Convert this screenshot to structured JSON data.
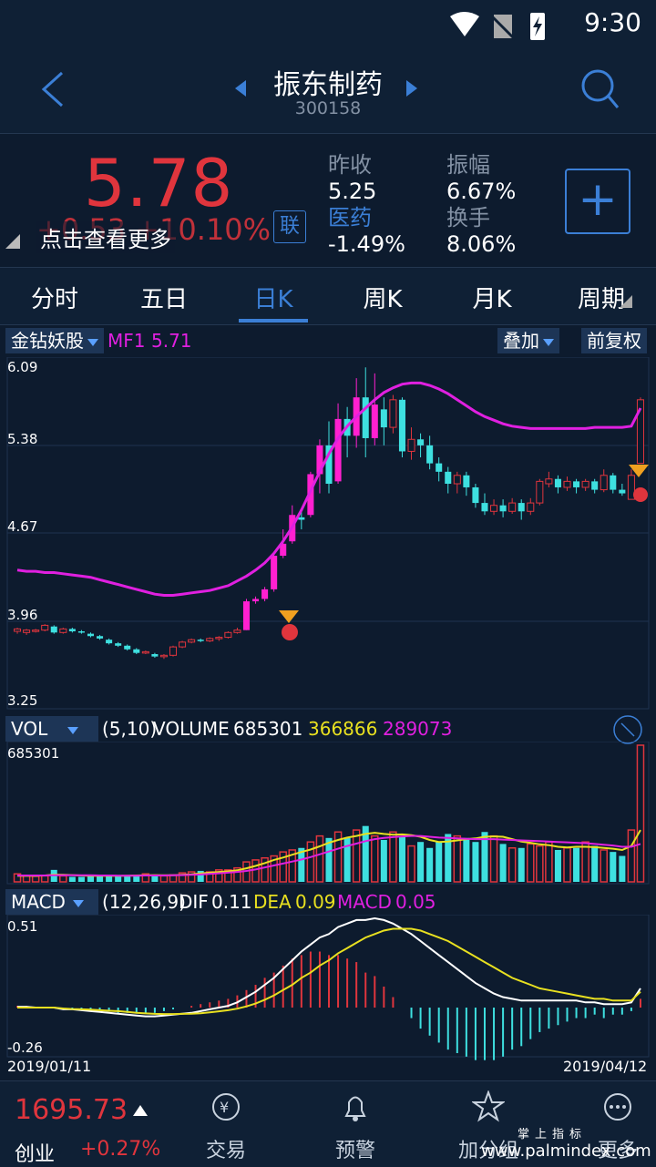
{
  "status": {
    "time": "9:30"
  },
  "header": {
    "title": "振东制药",
    "code": "300158"
  },
  "quote": {
    "price": "5.78",
    "change": "+0.53  +10.10%",
    "tap_more": "点击查看更多",
    "lian": "联",
    "prev_close_label": "昨收",
    "prev_close": "5.25",
    "sector_label": "医药",
    "sector_change": "-1.49%",
    "amplitude_label": "振幅",
    "amplitude": "6.67%",
    "turnover_label": "换手",
    "turnover": "8.06%",
    "add_label": "+"
  },
  "tabs": [
    "分时",
    "五日",
    "日K",
    "周K",
    "月K",
    "周期"
  ],
  "active_tab": 2,
  "indicator_bar": {
    "selector": "金钻妖股",
    "mf_label": "MF1",
    "mf_value": "5.71",
    "overlay": "叠加",
    "adjust": "前复权"
  },
  "price_axis": [
    "6.09",
    "5.38",
    "4.67",
    "3.96",
    "3.25"
  ],
  "vol_bar": {
    "selector": "VOL",
    "params": "(5,10)",
    "volume_label": "VOLUME",
    "volume": "685301",
    "ma5": "366866",
    "ma10": "289073",
    "max_label": "685301"
  },
  "macd_bar": {
    "selector": "MACD",
    "params": "(12,26,9)",
    "dif_label": "DIF",
    "dif": "0.11",
    "dea_label": "DEA",
    "dea": "0.09",
    "macd_label": "MACD",
    "macd": "0.05",
    "top": "0.51",
    "bottom": "-0.26"
  },
  "dates": {
    "start": "2019/01/11",
    "end": "2019/04/12"
  },
  "bottom": {
    "index_value": "1695.73",
    "index_name": "创业",
    "index_change": "+0.27%",
    "nav": [
      "交易",
      "预警",
      "加分组",
      "更多"
    ]
  },
  "watermark": {
    "line1": "掌上指标",
    "line2": "www.palmindex.com"
  },
  "colors": {
    "up": "#e0353d",
    "down": "#3ee0e0",
    "accent": "#3b7fd6",
    "mf": "#e020e0",
    "ma5": "#e8e020",
    "ma10": "#e020e0"
  },
  "chart_data": {
    "type": "candlestick",
    "price_range": [
      3.25,
      6.09
    ],
    "candles": [
      [
        3.85,
        3.87,
        3.83,
        3.88
      ],
      [
        3.84,
        3.86,
        3.82,
        3.87
      ],
      [
        3.85,
        3.86,
        3.84,
        3.87
      ],
      [
        3.86,
        3.9,
        3.85,
        3.91
      ],
      [
        3.89,
        3.84,
        3.83,
        3.9
      ],
      [
        3.84,
        3.87,
        3.83,
        3.88
      ],
      [
        3.87,
        3.85,
        3.84,
        3.88
      ],
      [
        3.85,
        3.84,
        3.83,
        3.86
      ],
      [
        3.83,
        3.81,
        3.8,
        3.84
      ],
      [
        3.81,
        3.79,
        3.78,
        3.82
      ],
      [
        3.78,
        3.75,
        3.74,
        3.79
      ],
      [
        3.75,
        3.73,
        3.72,
        3.76
      ],
      [
        3.73,
        3.7,
        3.69,
        3.74
      ],
      [
        3.7,
        3.67,
        3.66,
        3.71
      ],
      [
        3.67,
        3.68,
        3.66,
        3.69
      ],
      [
        3.66,
        3.64,
        3.63,
        3.67
      ],
      [
        3.64,
        3.65,
        3.62,
        3.66
      ],
      [
        3.65,
        3.72,
        3.64,
        3.73
      ],
      [
        3.72,
        3.76,
        3.71,
        3.77
      ],
      [
        3.76,
        3.78,
        3.75,
        3.79
      ],
      [
        3.78,
        3.77,
        3.76,
        3.79
      ],
      [
        3.77,
        3.79,
        3.76,
        3.8
      ],
      [
        3.79,
        3.8,
        3.77,
        3.81
      ],
      [
        3.8,
        3.84,
        3.79,
        3.85
      ],
      [
        3.84,
        3.86,
        3.83,
        3.88
      ],
      [
        3.86,
        4.1,
        3.86,
        4.12
      ],
      [
        4.1,
        4.12,
        4.08,
        4.14
      ],
      [
        4.12,
        4.2,
        4.1,
        4.22
      ],
      [
        4.2,
        4.48,
        4.18,
        4.5
      ],
      [
        4.48,
        4.58,
        4.46,
        4.7
      ],
      [
        4.6,
        4.82,
        4.58,
        4.9
      ],
      [
        4.8,
        4.78,
        4.7,
        4.85
      ],
      [
        4.82,
        5.16,
        4.8,
        5.18
      ],
      [
        5.16,
        5.4,
        5.0,
        5.45
      ],
      [
        5.4,
        5.08,
        5.0,
        5.6
      ],
      [
        5.1,
        5.62,
        5.08,
        5.75
      ],
      [
        5.62,
        5.48,
        5.3,
        5.72
      ],
      [
        5.48,
        5.8,
        5.38,
        5.96
      ],
      [
        5.8,
        5.46,
        5.3,
        6.05
      ],
      [
        5.46,
        5.74,
        5.4,
        6.0
      ],
      [
        5.7,
        5.55,
        5.4,
        5.8
      ],
      [
        5.55,
        5.78,
        5.5,
        5.82
      ],
      [
        5.78,
        5.35,
        5.3,
        5.8
      ],
      [
        5.35,
        5.45,
        5.28,
        5.55
      ],
      [
        5.45,
        5.4,
        5.3,
        5.5
      ],
      [
        5.4,
        5.25,
        5.2,
        5.48
      ],
      [
        5.25,
        5.18,
        5.1,
        5.3
      ],
      [
        5.18,
        5.08,
        5.0,
        5.22
      ],
      [
        5.08,
        5.15,
        5.0,
        5.18
      ],
      [
        5.15,
        5.05,
        4.98,
        5.18
      ],
      [
        5.05,
        4.92,
        4.88,
        5.08
      ],
      [
        4.92,
        4.85,
        4.82,
        5.0
      ],
      [
        4.85,
        4.9,
        4.82,
        4.95
      ],
      [
        4.9,
        4.85,
        4.8,
        4.95
      ],
      [
        4.85,
        4.92,
        4.83,
        4.96
      ],
      [
        4.92,
        4.85,
        4.78,
        4.95
      ],
      [
        4.85,
        4.92,
        4.82,
        4.96
      ],
      [
        4.92,
        5.1,
        4.9,
        5.12
      ],
      [
        5.08,
        5.12,
        5.05,
        5.18
      ],
      [
        5.12,
        5.05,
        5.0,
        5.15
      ],
      [
        5.05,
        5.1,
        5.02,
        5.14
      ],
      [
        5.1,
        5.05,
        5.0,
        5.12
      ],
      [
        5.05,
        5.1,
        5.02,
        5.12
      ],
      [
        5.1,
        5.03,
        5.0,
        5.12
      ],
      [
        5.03,
        5.15,
        5.01,
        5.2
      ],
      [
        5.15,
        5.03,
        5.0,
        5.17
      ],
      [
        5.03,
        5.0,
        4.98,
        5.08
      ],
      [
        4.95,
        5.15,
        4.95,
        5.2
      ],
      [
        5.25,
        5.78,
        5.25,
        5.8
      ]
    ],
    "mf1": [
      4.36,
      4.35,
      4.35,
      4.34,
      4.34,
      4.33,
      4.32,
      4.31,
      4.3,
      4.28,
      4.26,
      4.24,
      4.22,
      4.2,
      4.18,
      4.16,
      4.15,
      4.15,
      4.16,
      4.17,
      4.18,
      4.19,
      4.21,
      4.23,
      4.27,
      4.31,
      4.36,
      4.42,
      4.5,
      4.6,
      4.72,
      4.86,
      5.02,
      5.18,
      5.33,
      5.46,
      5.56,
      5.64,
      5.71,
      5.78,
      5.84,
      5.88,
      5.91,
      5.92,
      5.92,
      5.9,
      5.87,
      5.83,
      5.78,
      5.73,
      5.68,
      5.64,
      5.61,
      5.58,
      5.56,
      5.55,
      5.54,
      5.54,
      5.54,
      5.54,
      5.54,
      5.54,
      5.54,
      5.55,
      5.55,
      5.55,
      5.55,
      5.56,
      5.71
    ],
    "volume": [
      40,
      30,
      28,
      30,
      60,
      30,
      25,
      25,
      30,
      35,
      30,
      30,
      30,
      35,
      40,
      30,
      30,
      35,
      45,
      50,
      55,
      50,
      60,
      60,
      70,
      100,
      110,
      120,
      130,
      150,
      160,
      170,
      200,
      230,
      220,
      250,
      220,
      260,
      280,
      230,
      210,
      250,
      230,
      180,
      200,
      170,
      200,
      240,
      230,
      220,
      200,
      250,
      230,
      190,
      170,
      170,
      190,
      180,
      200,
      160,
      170,
      170,
      200,
      180,
      160,
      150,
      130,
      260,
      685
    ],
    "ma5": [
      30,
      30,
      30,
      32,
      36,
      35,
      34,
      32,
      30,
      30,
      30,
      30,
      31,
      32,
      33,
      34,
      33,
      33,
      35,
      38,
      42,
      46,
      50,
      53,
      58,
      68,
      80,
      94,
      110,
      122,
      136,
      150,
      162,
      178,
      196,
      210,
      222,
      230,
      240,
      246,
      240,
      236,
      238,
      234,
      226,
      210,
      200,
      202,
      208,
      214,
      218,
      226,
      228,
      226,
      214,
      202,
      196,
      188,
      184,
      176,
      172,
      176,
      176,
      174,
      170,
      166,
      160,
      180,
      260
    ],
    "ma10": [
      32,
      32,
      32,
      32,
      33,
      33,
      33,
      33,
      33,
      32,
      32,
      31,
      31,
      31,
      32,
      32,
      32,
      33,
      34,
      35,
      37,
      40,
      43,
      46,
      50,
      55,
      62,
      72,
      82,
      92,
      102,
      112,
      124,
      138,
      152,
      166,
      180,
      192,
      204,
      214,
      220,
      224,
      228,
      230,
      230,
      226,
      222,
      220,
      218,
      216,
      214,
      214,
      214,
      212,
      210,
      208,
      206,
      204,
      202,
      200,
      198,
      196,
      194,
      190,
      186,
      182,
      176,
      176,
      190
    ],
    "dif": [
      0.005,
      0.005,
      0.0,
      0.0,
      0.0,
      -0.01,
      -0.01,
      -0.015,
      -0.02,
      -0.025,
      -0.03,
      -0.035,
      -0.04,
      -0.045,
      -0.05,
      -0.05,
      -0.045,
      -0.04,
      -0.035,
      -0.03,
      -0.02,
      -0.01,
      0.0,
      0.01,
      0.03,
      0.06,
      0.09,
      0.13,
      0.17,
      0.22,
      0.27,
      0.32,
      0.36,
      0.4,
      0.42,
      0.46,
      0.48,
      0.5,
      0.5,
      0.51,
      0.5,
      0.48,
      0.45,
      0.42,
      0.38,
      0.34,
      0.3,
      0.26,
      0.22,
      0.18,
      0.14,
      0.11,
      0.08,
      0.06,
      0.05,
      0.04,
      0.04,
      0.04,
      0.04,
      0.04,
      0.04,
      0.04,
      0.03,
      0.03,
      0.02,
      0.02,
      0.02,
      0.03,
      0.11
    ],
    "dea": [
      0.0,
      0.0,
      0.0,
      0.0,
      0.0,
      -0.005,
      -0.008,
      -0.01,
      -0.012,
      -0.015,
      -0.018,
      -0.02,
      -0.025,
      -0.03,
      -0.033,
      -0.036,
      -0.037,
      -0.037,
      -0.036,
      -0.035,
      -0.032,
      -0.027,
      -0.021,
      -0.015,
      -0.006,
      0.007,
      0.023,
      0.045,
      0.07,
      0.1,
      0.13,
      0.17,
      0.2,
      0.24,
      0.27,
      0.31,
      0.34,
      0.37,
      0.4,
      0.42,
      0.44,
      0.45,
      0.45,
      0.45,
      0.44,
      0.42,
      0.4,
      0.38,
      0.35,
      0.32,
      0.29,
      0.26,
      0.23,
      0.2,
      0.17,
      0.15,
      0.13,
      0.11,
      0.1,
      0.09,
      0.08,
      0.07,
      0.06,
      0.05,
      0.05,
      0.04,
      0.04,
      0.04,
      0.09
    ],
    "macd": [
      0.01,
      0.01,
      0.0,
      0.0,
      0.0,
      -0.01,
      -0.01,
      -0.01,
      -0.02,
      -0.02,
      -0.02,
      -0.03,
      -0.03,
      -0.03,
      -0.03,
      -0.03,
      -0.02,
      -0.01,
      0.0,
      0.01,
      0.02,
      0.03,
      0.04,
      0.05,
      0.07,
      0.1,
      0.13,
      0.17,
      0.2,
      0.24,
      0.28,
      0.3,
      0.32,
      0.32,
      0.3,
      0.3,
      0.28,
      0.26,
      0.2,
      0.18,
      0.12,
      0.06,
      0.0,
      -0.06,
      -0.12,
      -0.16,
      -0.2,
      -0.24,
      -0.26,
      -0.28,
      -0.3,
      -0.3,
      -0.3,
      -0.28,
      -0.24,
      -0.22,
      -0.18,
      -0.14,
      -0.12,
      -0.1,
      -0.08,
      -0.06,
      -0.06,
      -0.04,
      -0.06,
      -0.04,
      -0.04,
      -0.02,
      0.05
    ],
    "macd_range": [
      -0.26,
      0.51
    ]
  }
}
